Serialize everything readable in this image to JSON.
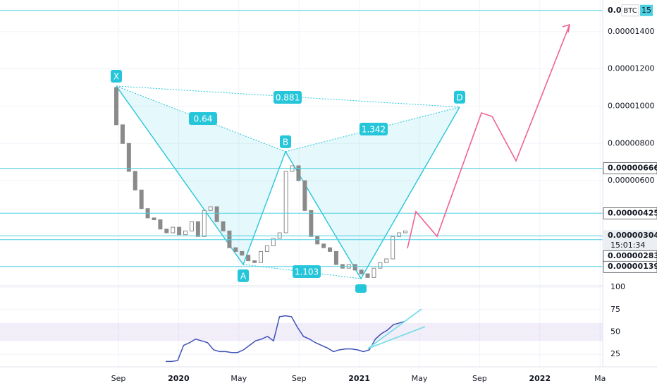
{
  "chart_data": {
    "type": "candlestick",
    "currency": "BTC",
    "ylim": [
      3.6e-07,
      1.57e-05
    ],
    "yticks": [
      {
        "value": 6e-06,
        "label": "0.00000600"
      },
      {
        "value": 8e-06,
        "label": "0.00000800"
      },
      {
        "value": 1e-05,
        "label": "0.00001000"
      },
      {
        "value": 1.2e-05,
        "label": "0.00001200"
      },
      {
        "value": 1.4e-05,
        "label": "0.00001400"
      }
    ],
    "x_labels": [
      "Sep",
      "2020",
      "May",
      "Sep",
      "2021",
      "May",
      "Sep",
      "2022",
      "Ma"
    ],
    "up_color": "#ffffff",
    "down_color": "#8a8a8a",
    "candles": {
      "open": [
        1.1e-05,
        9e-06,
        8e-06,
        6.5e-06,
        5.5e-06,
        4.5e-06,
        4e-06,
        3.9e-06,
        3.4e-06,
        3.2e-06,
        3.5e-06,
        3.1e-06,
        3.3e-06,
        3.8e-06,
        3e-06,
        4.4e-06,
        4.6e-06,
        3.8e-06,
        3.3e-06,
        2.4e-06,
        2.2e-06,
        2e-06,
        1.7e-06,
        1.6e-06,
        2.2e-06,
        2.5e-06,
        2.9e-06,
        3.2e-06,
        6.5e-06,
        6.8e-06,
        6e-06,
        4.4e-06,
        3e-06,
        2.6e-06,
        2.4e-06,
        2.2e-06,
        1.5e-06,
        1.3e-06,
        1.5e-06,
        1.2e-06,
        1e-06,
        8e-07,
        1.3e-06,
        1.6e-06,
        1.8e-06,
        3e-06,
        3.2e-06
      ],
      "close": [
        9e-06,
        8e-06,
        6.5e-06,
        5.5e-06,
        4.5e-06,
        4e-06,
        3.9e-06,
        3.4e-06,
        3.2e-06,
        3.5e-06,
        3.1e-06,
        3.3e-06,
        3.8e-06,
        3e-06,
        4.4e-06,
        4.6e-06,
        3.8e-06,
        3.3e-06,
        2.4e-06,
        2.2e-06,
        2e-06,
        1.7e-06,
        1.6e-06,
        2.2e-06,
        2.5e-06,
        2.9e-06,
        3.2e-06,
        6.5e-06,
        6.8e-06,
        6e-06,
        4.4e-06,
        3e-06,
        2.6e-06,
        2.4e-06,
        2.2e-06,
        1.5e-06,
        1.3e-06,
        1.5e-06,
        1.2e-06,
        1e-06,
        8e-07,
        1.3e-06,
        1.6e-06,
        1.8e-06,
        3e-06,
        3.2e-06,
        3.3e-06
      ]
    },
    "price_levels": [
      {
        "value": 1.514e-05,
        "label_start": "0.0",
        "label_end": "15"
      },
      {
        "value": 6.66e-06,
        "label": "0.00000666"
      },
      {
        "value": 4.25e-06,
        "label": "0.00000425"
      },
      {
        "value": 3.04e-06,
        "label": "0.00000304",
        "countdown": "15:01:34"
      },
      {
        "value": 2.83e-06,
        "label": "0.00000283"
      },
      {
        "value": 1.39e-06,
        "label": "0.00000139"
      }
    ],
    "level_color": "#4dd0e1",
    "pattern": {
      "points": [
        {
          "label": "X",
          "price": 1.108e-05
        },
        {
          "label": "A",
          "price": 1.5e-06
        },
        {
          "label": "B",
          "price": 7.56e-06
        },
        {
          "label": null,
          "price": 7.4e-07
        },
        {
          "label": "D",
          "price": 9.95e-06
        }
      ],
      "ratios": [
        0.64,
        0.881,
        1.342,
        1.103
      ],
      "color": "#26c6da"
    },
    "rsi": {
      "ylim": [
        11,
        101.6
      ],
      "yticks": [
        25,
        50,
        75,
        100
      ],
      "band": [
        40,
        60
      ],
      "color": "#3f51b5",
      "values": [
        17,
        17,
        18,
        35,
        38,
        42,
        40,
        38,
        30,
        28,
        28,
        27,
        27,
        30,
        35,
        40,
        42,
        45,
        40,
        67,
        68,
        67,
        55,
        45,
        42,
        38,
        35,
        32,
        28,
        30,
        31,
        31,
        30,
        28,
        30,
        42,
        48,
        52,
        58,
        60,
        62
      ]
    }
  }
}
